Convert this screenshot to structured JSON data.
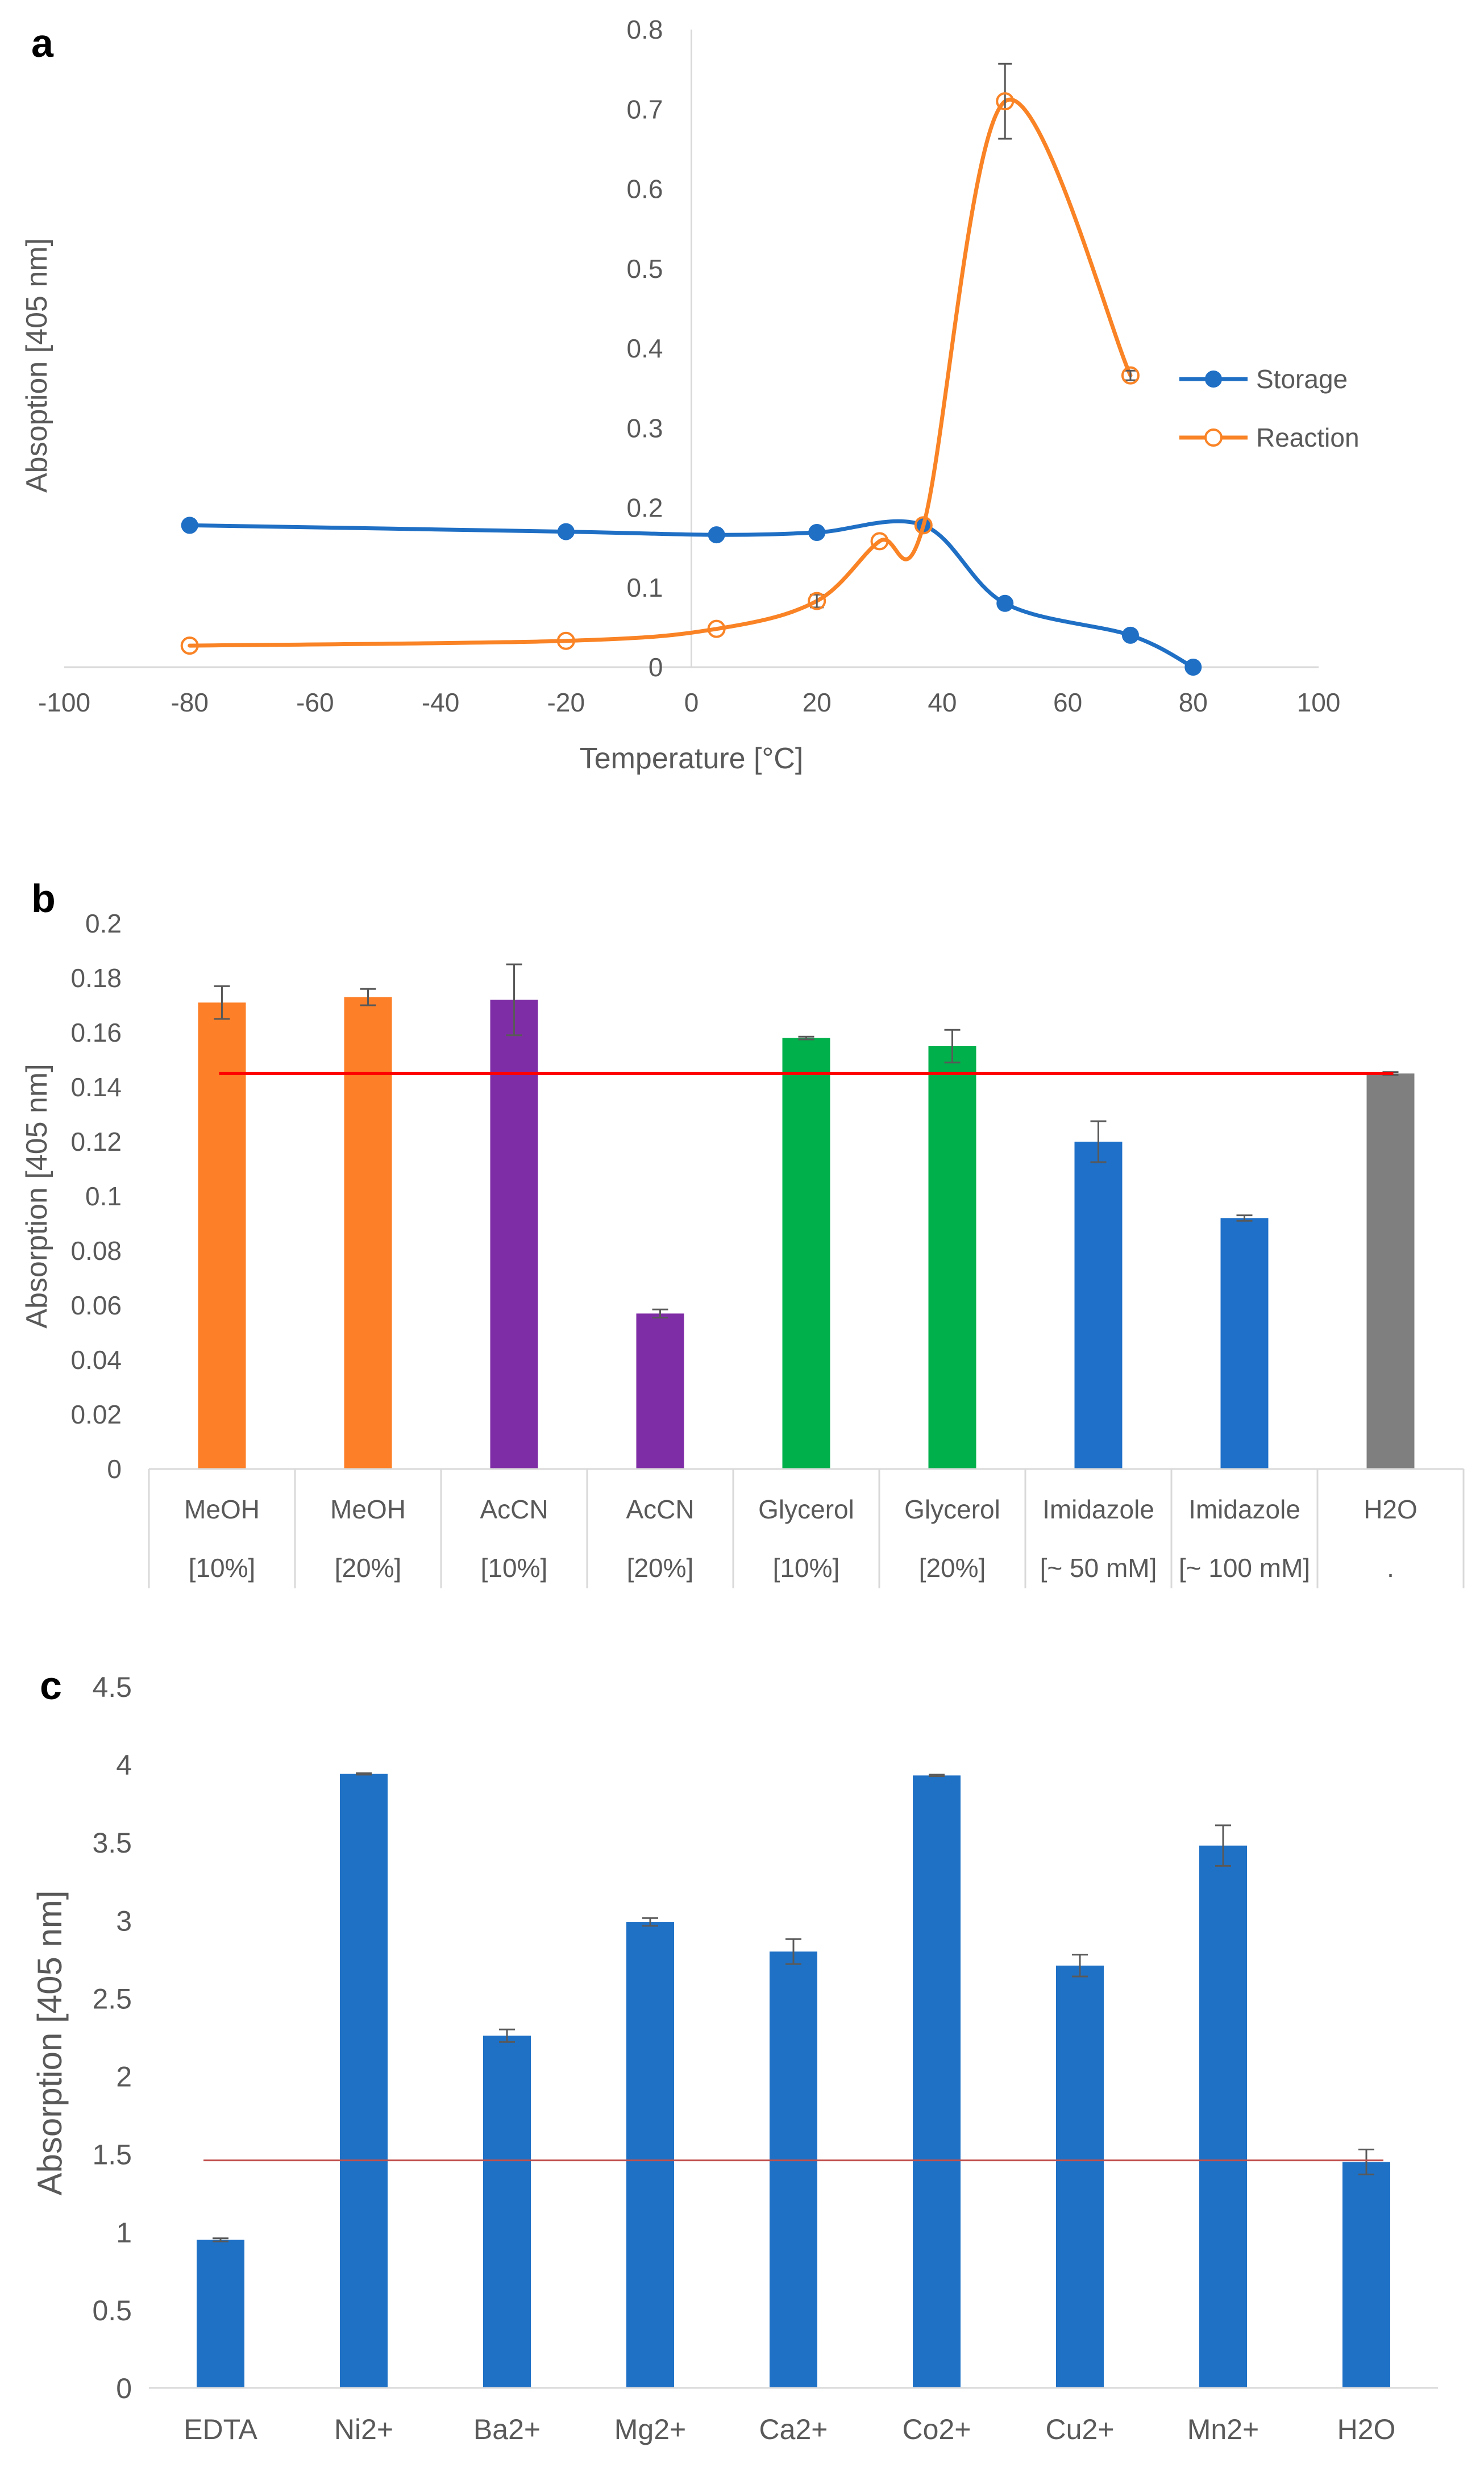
{
  "colors": {
    "storage": "#1F6FC5",
    "reaction": "#F98325",
    "meoh": "#FD7F27",
    "acetonitrile": "#7F2DA6",
    "glycerol": "#00B04B",
    "imidazole": "#1F70C8",
    "water": "#7F7F7F",
    "reference_b": "#FF0000",
    "reference_c": "#C0504D",
    "metal_bars": "#1F71C6",
    "axis": "#D9D9D9",
    "text": "#595959"
  },
  "chart_data": [
    {
      "panel": "a",
      "type": "line",
      "xlabel": "Temperature [°C]",
      "ylabel": "Absoption [405 nm]",
      "xlim": [
        -100,
        100
      ],
      "ylim": [
        0,
        0.8
      ],
      "xticks": [
        -100,
        -80,
        -60,
        -40,
        -20,
        0,
        20,
        40,
        60,
        80,
        100
      ],
      "yticks": [
        0,
        0.1,
        0.2,
        0.3,
        0.4,
        0.5,
        0.6,
        0.7,
        0.8
      ],
      "legend_position": "right",
      "series": [
        {
          "name": "Storage",
          "marker": "filled-circle",
          "x": [
            -80,
            -20,
            4,
            20,
            37,
            50,
            70,
            80
          ],
          "y": [
            0.178,
            0.17,
            0.166,
            0.169,
            0.178,
            0.08,
            0.04,
            0.0
          ],
          "err": [
            0,
            0,
            0,
            0,
            0,
            0,
            0,
            0
          ]
        },
        {
          "name": "Reaction",
          "marker": "open-circle",
          "x": [
            -80,
            -20,
            4,
            20,
            30,
            37,
            50,
            70
          ],
          "y": [
            0.027,
            0.033,
            0.048,
            0.083,
            0.158,
            0.178,
            0.71,
            0.366
          ],
          "err": [
            0,
            0,
            0,
            0.008,
            0,
            0,
            0.047,
            0.006
          ]
        }
      ]
    },
    {
      "panel": "b",
      "type": "bar",
      "ylabel": "Absorption [405 nm]",
      "ylim": [
        0,
        0.2
      ],
      "yticks": [
        0,
        0.02,
        0.04,
        0.06,
        0.08,
        0.1,
        0.12,
        0.14,
        0.16,
        0.18,
        0.2
      ],
      "categories": [
        {
          "name": "MeOH",
          "sub": "[10%]"
        },
        {
          "name": "MeOH",
          "sub": "[20%]"
        },
        {
          "name": "AcCN",
          "sub": "[10%]"
        },
        {
          "name": "AcCN",
          "sub": "[20%]"
        },
        {
          "name": "Glycerol",
          "sub": "[10%]"
        },
        {
          "name": "Glycerol",
          "sub": "[20%]"
        },
        {
          "name": "Imidazole",
          "sub": "[~ 50 mM]"
        },
        {
          "name": "Imidazole",
          "sub": "[~ 100 mM]"
        },
        {
          "name": "H2O",
          "sub": "."
        }
      ],
      "values": [
        0.171,
        0.173,
        0.172,
        0.057,
        0.158,
        0.155,
        0.12,
        0.092,
        0.145
      ],
      "errors": [
        0.006,
        0.003,
        0.013,
        0.0015,
        0.0005,
        0.006,
        0.0075,
        0.001,
        0.0005
      ],
      "bar_colors": [
        "meoh",
        "meoh",
        "acetonitrile",
        "acetonitrile",
        "glycerol",
        "glycerol",
        "imidazole",
        "imidazole",
        "water"
      ],
      "reference_line": 0.145
    },
    {
      "panel": "c",
      "type": "bar",
      "ylabel": "Absorption [405 nm]",
      "ylim": [
        0,
        4.5
      ],
      "yticks": [
        0,
        0.5,
        1,
        1.5,
        2,
        2.5,
        3,
        3.5,
        4,
        4.5
      ],
      "categories": [
        "EDTA",
        "Ni2+",
        "Ba2+",
        "Mg2+",
        "Ca2+",
        "Co2+",
        "Cu2+",
        "Mn2+",
        "H2O"
      ],
      "values": [
        0.95,
        3.94,
        2.26,
        2.99,
        2.8,
        3.93,
        2.71,
        3.48,
        1.45
      ],
      "errors": [
        0.01,
        0.005,
        0.04,
        0.025,
        0.08,
        0.005,
        0.07,
        0.13,
        0.08
      ],
      "reference_line": 1.46
    }
  ]
}
